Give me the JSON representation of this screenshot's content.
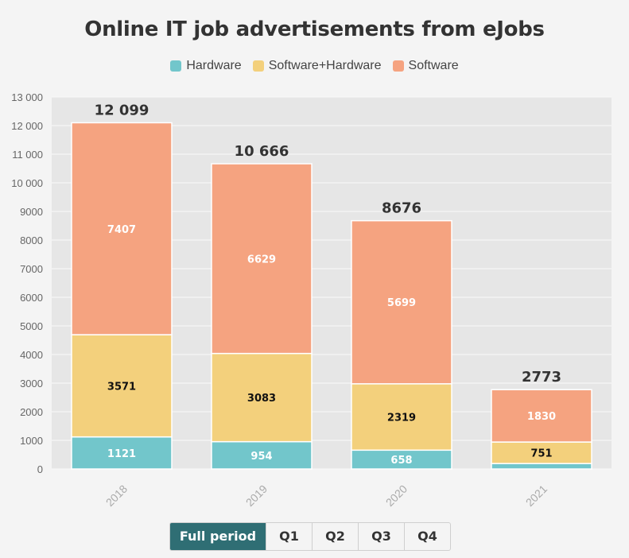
{
  "chart_data": {
    "type": "bar",
    "stacked": true,
    "title": "Online IT job advertisements from eJobs",
    "categories": [
      "2018",
      "2019",
      "2020",
      "2021"
    ],
    "series": [
      {
        "name": "Hardware",
        "color": "#72c6cb",
        "values": [
          1121,
          954,
          658,
          191
        ]
      },
      {
        "name": "Software+Hardware",
        "color": "#f3d07c",
        "values": [
          3571,
          3083,
          2319,
          751
        ]
      },
      {
        "name": "Software",
        "color": "#f5a380",
        "values": [
          7407,
          6629,
          5699,
          1830
        ]
      }
    ],
    "segment_labels": [
      [
        "1121",
        "954",
        "658",
        ""
      ],
      [
        "3571",
        "3083",
        "2319",
        "751"
      ],
      [
        "7407",
        "6629",
        "5699",
        "1830"
      ]
    ],
    "totals": [
      "12 099",
      "10 666",
      "8676",
      "2773"
    ],
    "ylim": [
      0,
      13000
    ],
    "yticks": [
      "0",
      "1000",
      "2000",
      "3000",
      "4000",
      "5000",
      "6000",
      "7000",
      "8000",
      "9000",
      "10 000",
      "11 000",
      "12 000",
      "13 000"
    ],
    "grid": true,
    "legend_position": "top"
  },
  "period_selector": {
    "options": [
      "Full period",
      "Q1",
      "Q2",
      "Q3",
      "Q4"
    ],
    "selected": "Full period"
  }
}
